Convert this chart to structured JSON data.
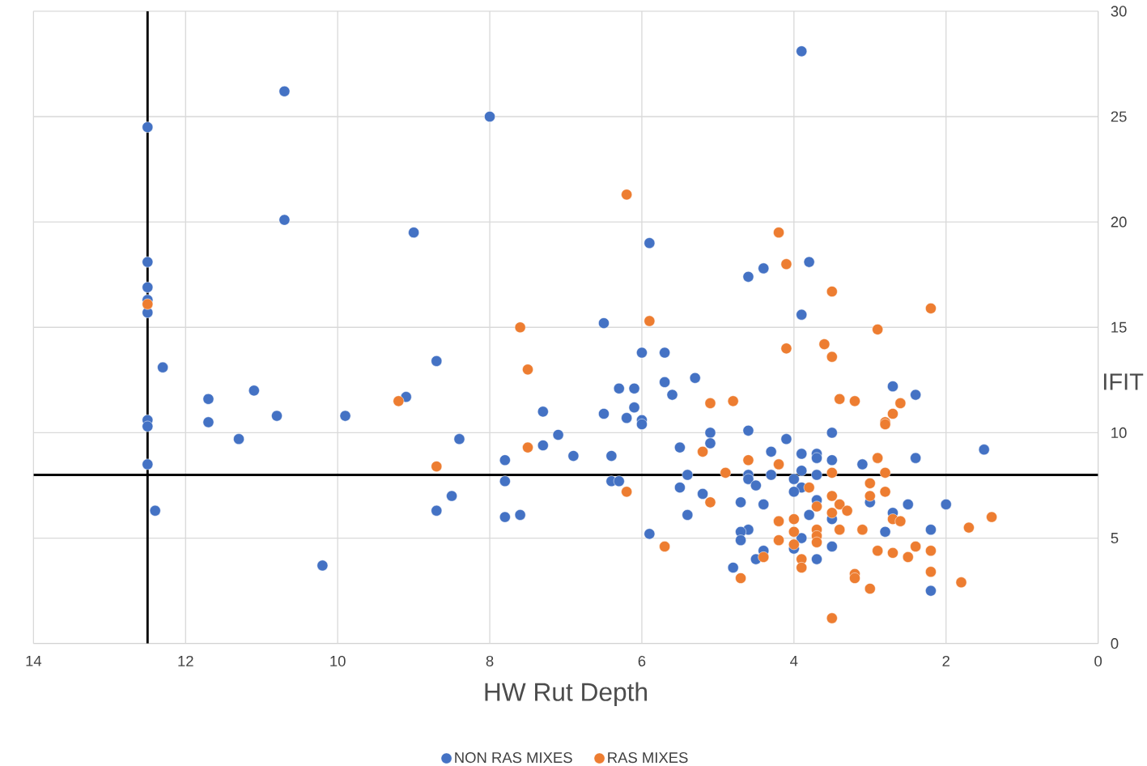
{
  "chart_data": {
    "type": "scatter",
    "xlabel": "HW Rut Depth",
    "ylabel": "IFIT",
    "xlim": [
      14,
      0
    ],
    "ylim": [
      0,
      30
    ],
    "xticks": [
      14,
      12,
      10,
      8,
      6,
      4,
      2,
      0
    ],
    "yticks": [
      0,
      5,
      10,
      15,
      20,
      25,
      30
    ],
    "grid": true,
    "legend": "bottom",
    "marker": "circle",
    "ref_lines": [
      {
        "axis": "x",
        "value": 12.5,
        "color": "#000000"
      },
      {
        "axis": "y",
        "value": 8,
        "color": "#000000"
      }
    ],
    "series": [
      {
        "name": "NON RAS MIXES",
        "color": "#4472c4",
        "x": [
          12.5,
          10.7,
          10.7,
          8.0,
          3.9,
          9.0,
          5.9,
          12.5,
          12.5,
          12.5,
          12.5,
          3.8,
          4.4,
          4.6,
          3.9,
          6.5,
          8.7,
          6.0,
          5.7,
          12.3,
          5.3,
          5.7,
          6.3,
          6.1,
          5.6,
          2.7,
          2.4,
          11.1,
          11.7,
          9.1,
          6.1,
          7.3,
          6.5,
          6.2,
          6.0,
          6.0,
          10.8,
          9.9,
          12.5,
          12.5,
          11.7,
          5.1,
          4.6,
          3.5,
          7.1,
          11.3,
          8.4,
          4.1,
          7.3,
          5.1,
          5.5,
          1.5,
          4.3,
          3.9,
          3.7,
          3.7,
          6.9,
          6.4,
          3.5,
          7.8,
          2.4,
          3.1,
          12.5,
          3.9,
          5.4,
          4.6,
          4.3,
          3.7,
          4.6,
          4.0,
          7.8,
          6.4,
          6.3,
          4.5,
          3.9,
          5.5,
          4.0,
          5.2,
          8.5,
          3.7,
          4.7,
          3.0,
          4.4,
          2.5,
          2.0,
          12.4,
          8.7,
          2.7,
          5.4,
          7.6,
          3.8,
          7.8,
          3.5,
          4.6,
          4.7,
          2.2,
          2.8,
          5.9,
          3.9,
          4.7,
          3.5,
          4.4,
          4.0,
          4.5,
          3.7,
          10.2,
          4.8,
          2.2
        ],
        "values": [
          24.5,
          26.2,
          20.1,
          25.0,
          28.1,
          19.5,
          19.0,
          18.1,
          16.9,
          16.3,
          15.7,
          18.1,
          17.8,
          17.4,
          15.6,
          15.2,
          13.4,
          13.8,
          13.8,
          13.1,
          12.6,
          12.4,
          12.1,
          12.1,
          11.8,
          12.2,
          11.8,
          12.0,
          11.6,
          11.7,
          11.2,
          11.0,
          10.9,
          10.7,
          10.6,
          10.4,
          10.8,
          10.8,
          10.6,
          10.3,
          10.5,
          10.0,
          10.1,
          10.0,
          9.9,
          9.7,
          9.7,
          9.7,
          9.4,
          9.5,
          9.3,
          9.2,
          9.1,
          9.0,
          9.0,
          8.8,
          8.9,
          8.9,
          8.7,
          8.7,
          8.8,
          8.5,
          8.5,
          8.2,
          8.0,
          8.0,
          8.0,
          8.0,
          7.8,
          7.8,
          7.7,
          7.7,
          7.7,
          7.5,
          7.4,
          7.4,
          7.2,
          7.1,
          7.0,
          6.8,
          6.7,
          6.7,
          6.6,
          6.6,
          6.6,
          6.3,
          6.3,
          6.2,
          6.1,
          6.1,
          6.1,
          6.0,
          5.9,
          5.4,
          5.3,
          5.4,
          5.3,
          5.2,
          5.0,
          4.9,
          4.6,
          4.4,
          4.5,
          4.0,
          4.0,
          3.7,
          3.6,
          2.5
        ]
      },
      {
        "name": "RAS MIXES",
        "color": "#ed7d31",
        "x": [
          6.2,
          4.2,
          4.1,
          3.5,
          12.5,
          2.2,
          5.9,
          7.6,
          2.9,
          3.6,
          4.1,
          3.5,
          7.5,
          3.4,
          3.2,
          9.2,
          4.8,
          5.1,
          2.6,
          2.7,
          2.8,
          2.8,
          7.5,
          5.2,
          4.6,
          2.9,
          8.7,
          4.2,
          4.9,
          3.5,
          2.8,
          3.0,
          3.8,
          2.8,
          6.2,
          3.5,
          3.0,
          5.1,
          3.4,
          3.7,
          3.3,
          3.5,
          4.0,
          2.7,
          2.6,
          4.2,
          1.4,
          1.7,
          3.7,
          3.4,
          3.1,
          4.0,
          3.7,
          4.2,
          4.0,
          3.7,
          5.7,
          2.4,
          2.9,
          2.7,
          2.2,
          4.4,
          2.5,
          3.9,
          3.9,
          2.2,
          3.2,
          3.2,
          4.7,
          1.8,
          3.0,
          3.5
        ],
        "values": [
          21.3,
          19.5,
          18.0,
          16.7,
          16.1,
          15.9,
          15.3,
          15.0,
          14.9,
          14.2,
          14.0,
          13.6,
          13.0,
          11.6,
          11.5,
          11.5,
          11.5,
          11.4,
          11.4,
          10.9,
          10.5,
          10.4,
          9.3,
          9.1,
          8.7,
          8.8,
          8.4,
          8.5,
          8.1,
          8.1,
          8.1,
          7.6,
          7.4,
          7.2,
          7.2,
          7.0,
          7.0,
          6.7,
          6.6,
          6.5,
          6.3,
          6.2,
          5.9,
          5.9,
          5.8,
          5.8,
          6.0,
          5.5,
          5.4,
          5.4,
          5.4,
          5.3,
          5.1,
          4.9,
          4.7,
          4.8,
          4.6,
          4.6,
          4.4,
          4.3,
          4.4,
          4.1,
          4.1,
          4.0,
          3.6,
          3.4,
          3.3,
          3.1,
          3.1,
          2.9,
          2.6,
          1.2
        ]
      }
    ]
  }
}
